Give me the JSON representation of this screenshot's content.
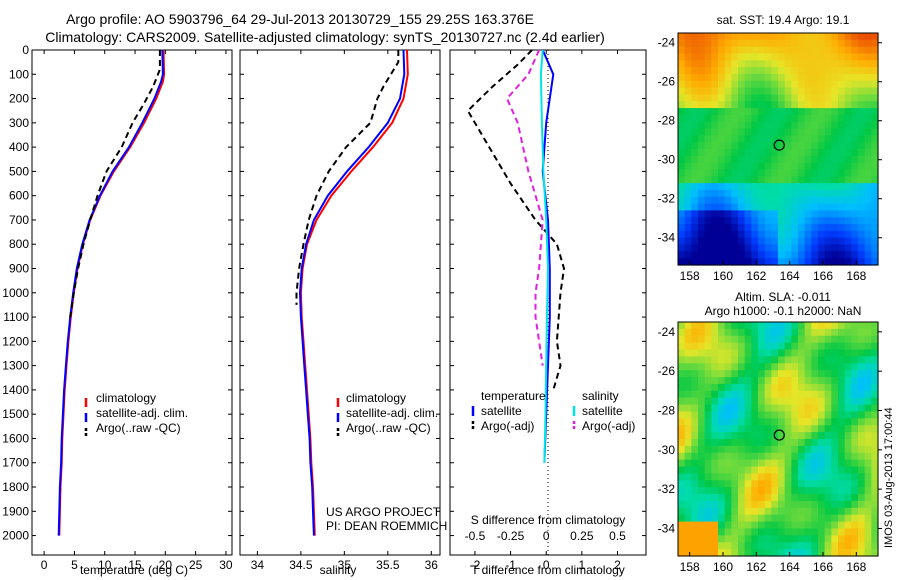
{
  "header": {
    "line1": "Argo profile: AO 5903796_64 29-Jul-2013 20130729_155 29.25S 163.376E",
    "line2": "Climatology: CARS2009. Satellite-adjusted climatology: synTS_20130727.nc (2.4d earlier)"
  },
  "colors": {
    "climatology": "#ff0000",
    "satellite": "#0000ff",
    "argo": "#000000",
    "sal_satellite": "#00e5e5",
    "sal_argo": "#e020e0"
  },
  "chart_data": [
    {
      "type": "line",
      "xlabel": "temperature (deg C)",
      "ylabel": "",
      "xlim": [
        -2,
        31
      ],
      "ylim": [
        2080,
        0
      ],
      "xticks": [
        "0",
        "5",
        "10",
        "15",
        "20",
        "25",
        "30"
      ],
      "xtick_values": [
        0,
        5,
        10,
        15,
        20,
        25,
        30
      ],
      "yticks": [
        "0",
        "100",
        "200",
        "300",
        "400",
        "500",
        "600",
        "700",
        "800",
        "900",
        "1000",
        "1100",
        "1200",
        "1300",
        "1400",
        "1500",
        "1600",
        "1700",
        "1800",
        "1900",
        "2000"
      ],
      "ytick_values": [
        0,
        100,
        200,
        300,
        400,
        500,
        600,
        700,
        800,
        900,
        1000,
        1100,
        1200,
        1300,
        1400,
        1500,
        1600,
        1700,
        1800,
        1900,
        2000
      ],
      "legend": [
        "climatology",
        "satellite-adj. clim.",
        "Argo(..raw -QC)"
      ],
      "legend_position": "lower-center",
      "series": [
        {
          "name": "climatology",
          "color": "#ff0000",
          "style": "solid",
          "points": [
            [
              19.7,
              0
            ],
            [
              19.8,
              100
            ],
            [
              19.6,
              130
            ],
            [
              18.5,
              200
            ],
            [
              16.5,
              300
            ],
            [
              14.2,
              400
            ],
            [
              11.5,
              500
            ],
            [
              9.3,
              600
            ],
            [
              7.6,
              700
            ],
            [
              6.4,
              800
            ],
            [
              5.5,
              900
            ],
            [
              4.9,
              1000
            ],
            [
              4.4,
              1100
            ],
            [
              4.0,
              1200
            ],
            [
              3.7,
              1300
            ],
            [
              3.4,
              1400
            ],
            [
              3.2,
              1500
            ],
            [
              3.0,
              1600
            ],
            [
              2.9,
              1700
            ],
            [
              2.7,
              1800
            ],
            [
              2.6,
              1900
            ],
            [
              2.5,
              2000
            ]
          ]
        },
        {
          "name": "satellite-adj. clim.",
          "color": "#0000ff",
          "style": "solid",
          "points": [
            [
              19.5,
              0
            ],
            [
              19.6,
              100
            ],
            [
              19.3,
              130
            ],
            [
              18.2,
              200
            ],
            [
              16.2,
              300
            ],
            [
              14.0,
              400
            ],
            [
              11.3,
              500
            ],
            [
              9.2,
              600
            ],
            [
              7.5,
              700
            ],
            [
              6.3,
              800
            ],
            [
              5.4,
              900
            ],
            [
              4.8,
              1000
            ],
            [
              4.3,
              1100
            ],
            [
              3.9,
              1200
            ],
            [
              3.6,
              1300
            ],
            [
              3.3,
              1400
            ],
            [
              3.1,
              1500
            ],
            [
              2.9,
              1600
            ],
            [
              2.8,
              1700
            ],
            [
              2.6,
              1800
            ],
            [
              2.5,
              1900
            ],
            [
              2.4,
              2000
            ]
          ]
        },
        {
          "name": "Argo(..raw -QC)",
          "color": "#000000",
          "style": "dashed",
          "points": [
            [
              19.1,
              0
            ],
            [
              19.1,
              80
            ],
            [
              18.0,
              150
            ],
            [
              16.5,
              220
            ],
            [
              14.6,
              300
            ],
            [
              12.8,
              400
            ],
            [
              10.3,
              500
            ],
            [
              8.8,
              600
            ],
            [
              7.6,
              700
            ],
            [
              6.5,
              800
            ],
            [
              5.6,
              900
            ],
            [
              4.9,
              1000
            ],
            [
              4.3,
              1100
            ]
          ]
        }
      ]
    },
    {
      "type": "line",
      "xlabel": "salinity",
      "ylabel": "",
      "xlim": [
        33.8,
        36.1
      ],
      "ylim": [
        2080,
        0
      ],
      "xticks": [
        "34",
        "34.5",
        "35",
        "35.5",
        "36"
      ],
      "xtick_values": [
        34,
        34.5,
        35,
        35.5,
        36
      ],
      "legend": [
        "climatology",
        "satellite-adj. clim.",
        "Argo(..raw -QC)"
      ],
      "legend_position": "lower-center",
      "annotations": [
        "US ARGO PROJECT",
        "PI: DEAN ROEMMICH"
      ],
      "series": [
        {
          "name": "climatology",
          "color": "#ff0000",
          "style": "solid",
          "points": [
            [
              35.72,
              0
            ],
            [
              35.73,
              100
            ],
            [
              35.68,
              200
            ],
            [
              35.55,
              300
            ],
            [
              35.33,
              400
            ],
            [
              35.08,
              500
            ],
            [
              34.85,
              600
            ],
            [
              34.68,
              700
            ],
            [
              34.57,
              800
            ],
            [
              34.52,
              900
            ],
            [
              34.5,
              1000
            ],
            [
              34.51,
              1100
            ],
            [
              34.53,
              1200
            ],
            [
              34.55,
              1300
            ],
            [
              34.57,
              1400
            ],
            [
              34.59,
              1500
            ],
            [
              34.61,
              1600
            ],
            [
              34.62,
              1700
            ],
            [
              34.64,
              1800
            ],
            [
              34.65,
              1900
            ],
            [
              34.66,
              2000
            ]
          ]
        },
        {
          "name": "satellite-adj. clim.",
          "color": "#0000ff",
          "style": "solid",
          "points": [
            [
              35.68,
              0
            ],
            [
              35.69,
              100
            ],
            [
              35.64,
              200
            ],
            [
              35.5,
              300
            ],
            [
              35.28,
              400
            ],
            [
              35.03,
              500
            ],
            [
              34.81,
              600
            ],
            [
              34.65,
              700
            ],
            [
              34.56,
              800
            ],
            [
              34.51,
              900
            ],
            [
              34.49,
              1000
            ],
            [
              34.5,
              1100
            ],
            [
              34.52,
              1200
            ],
            [
              34.54,
              1300
            ],
            [
              34.56,
              1400
            ],
            [
              34.58,
              1500
            ],
            [
              34.6,
              1600
            ],
            [
              34.61,
              1700
            ],
            [
              34.63,
              1800
            ],
            [
              34.64,
              1900
            ],
            [
              34.65,
              2000
            ]
          ]
        },
        {
          "name": "Argo(..raw -QC)",
          "color": "#000000",
          "style": "dashed",
          "points": [
            [
              35.62,
              0
            ],
            [
              35.62,
              50
            ],
            [
              35.45,
              150
            ],
            [
              35.38,
              200
            ],
            [
              35.3,
              300
            ],
            [
              35.02,
              400
            ],
            [
              34.82,
              500
            ],
            [
              34.68,
              600
            ],
            [
              34.59,
              700
            ],
            [
              34.53,
              800
            ],
            [
              34.48,
              900
            ],
            [
              34.45,
              1000
            ],
            [
              34.45,
              1050
            ]
          ]
        }
      ]
    },
    {
      "type": "line",
      "xlabel": "T difference from climatology",
      "top_label": "S difference from climatology",
      "xlim": [
        -2.7,
        2.8
      ],
      "ylim": [
        2080,
        0
      ],
      "xticks": [
        "-2",
        "-1",
        "0",
        "1",
        "2"
      ],
      "xtick_values": [
        -2,
        -1,
        0,
        1,
        2
      ],
      "s_ticks": [
        "-0.5",
        "-0.25",
        "0",
        "0.25",
        "0.5"
      ],
      "s_tick_values": [
        -0.5,
        -0.25,
        0,
        0.25,
        0.5
      ],
      "legend_temperature_title": "temperature",
      "legend_salinity_title": "salinity",
      "legend_temperature": [
        "satellite",
        "Argo(-adj)"
      ],
      "legend_salinity": [
        "satellite",
        "Argo(-adj)"
      ],
      "legend_position": "lower-center",
      "series": [
        {
          "name": "temperature satellite",
          "color": "#0000ff",
          "style": "solid",
          "points": [
            [
              -0.1,
              0
            ],
            [
              0.2,
              100
            ],
            [
              0.0,
              300
            ],
            [
              -0.1,
              500
            ],
            [
              0.05,
              700
            ],
            [
              0.1,
              900
            ],
            [
              0.1,
              1100
            ],
            [
              0.05,
              1300
            ],
            [
              0.0,
              1500
            ],
            [
              -0.05,
              1700
            ]
          ]
        },
        {
          "name": "temperature Argo(-adj)",
          "color": "#000000",
          "style": "dashed",
          "points": [
            [
              -0.4,
              0
            ],
            [
              -0.8,
              60
            ],
            [
              -1.5,
              150
            ],
            [
              -2.2,
              250
            ],
            [
              -1.6,
              400
            ],
            [
              -1.0,
              550
            ],
            [
              -0.3,
              700
            ],
            [
              0.0,
              750
            ],
            [
              0.3,
              800
            ],
            [
              0.5,
              900
            ],
            [
              0.4,
              1000
            ],
            [
              0.3,
              1200
            ],
            [
              0.4,
              1300
            ],
            [
              0.2,
              1400
            ]
          ]
        },
        {
          "name": "salinity satellite",
          "color": "#00e5e5",
          "style": "solid",
          "points": [
            [
              -0.1,
              0
            ],
            [
              -0.15,
              100
            ],
            [
              -0.12,
              300
            ],
            [
              -0.08,
              500
            ],
            [
              0.0,
              700
            ],
            [
              0.05,
              900
            ],
            [
              0.02,
              1100
            ],
            [
              0.0,
              1300
            ],
            [
              -0.02,
              1500
            ],
            [
              -0.05,
              1700
            ]
          ]
        },
        {
          "name": "salinity Argo(-adj)",
          "color": "#e020e0",
          "style": "dashed",
          "points": [
            [
              -0.2,
              0
            ],
            [
              -0.5,
              100
            ],
            [
              -1.1,
              200
            ],
            [
              -0.8,
              300
            ],
            [
              -0.5,
              500
            ],
            [
              -0.1,
              700
            ],
            [
              -0.2,
              900
            ],
            [
              -0.3,
              1000
            ],
            [
              -0.3,
              1100
            ],
            [
              -0.2,
              1200
            ],
            [
              -0.1,
              1300
            ]
          ]
        }
      ]
    },
    {
      "type": "heatmap",
      "title": "sat. SST: 19.4  Argo: 19.1",
      "xlim": [
        157.3,
        169.3
      ],
      "ylim": [
        -35.4,
        -23.5
      ],
      "xticks": [
        "158",
        "160",
        "162",
        "164",
        "166",
        "168"
      ],
      "xtick_values": [
        158,
        160,
        162,
        164,
        166,
        168
      ],
      "yticks": [
        "-24",
        "-26",
        "-28",
        "-30",
        "-32",
        "-34"
      ],
      "ytick_values": [
        -24,
        -26,
        -28,
        -30,
        -32,
        -34
      ],
      "argo_position": [
        163.376,
        -29.25
      ]
    },
    {
      "type": "heatmap",
      "title": "Altim. SLA: -0.011",
      "subtitle": "Argo h1000: -0.1 h2000: NaN",
      "xlim": [
        157.3,
        169.3
      ],
      "ylim": [
        -35.4,
        -23.5
      ],
      "xticks": [
        "158",
        "160",
        "162",
        "164",
        "166",
        "168"
      ],
      "xtick_values": [
        158,
        160,
        162,
        164,
        166,
        168
      ],
      "yticks": [
        "-24",
        "-26",
        "-28",
        "-30",
        "-32",
        "-34"
      ],
      "ytick_values": [
        -24,
        -26,
        -28,
        -30,
        -32,
        -34
      ],
      "argo_position": [
        163.376,
        -29.25
      ]
    }
  ],
  "footer": {
    "stamp": "IMOS 03-Aug-2013 17:00:44"
  }
}
